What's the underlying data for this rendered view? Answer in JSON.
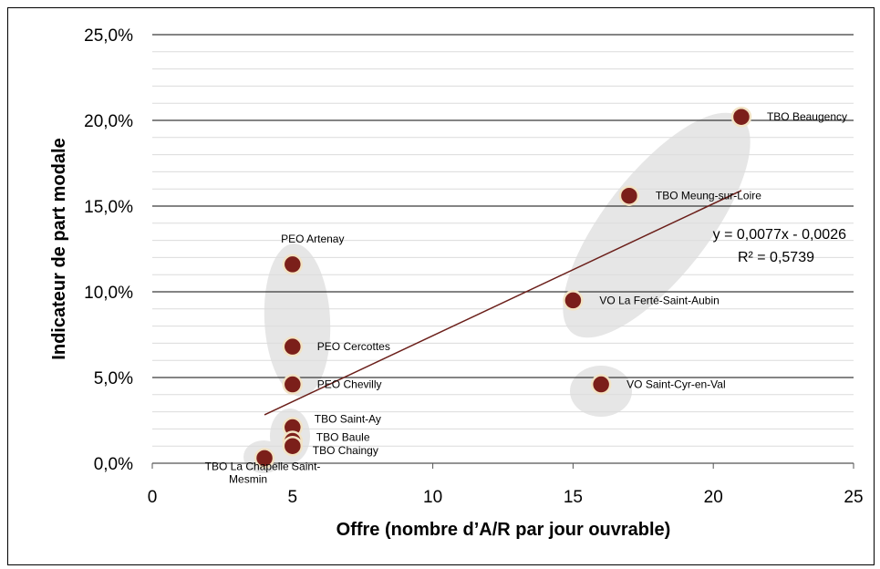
{
  "chart_data": {
    "type": "scatter",
    "xlabel": "Offre (nombre d’A/R par jour ouvrable)",
    "ylabel": "Indicateur de part modale",
    "xlim": [
      0,
      25
    ],
    "ylim": [
      0,
      0.25
    ],
    "x_ticks": [
      0,
      5,
      10,
      15,
      20,
      25
    ],
    "x_tick_labels": [
      "0",
      "5",
      "10",
      "15",
      "20",
      "25"
    ],
    "y_ticks": [
      0,
      0.05,
      0.1,
      0.15,
      0.2,
      0.25
    ],
    "y_tick_labels": [
      "0,0%",
      "5,0%",
      "10,0%",
      "15,0%",
      "20,0%",
      "25,0%"
    ],
    "grid": "horizontal",
    "point_color": "#7b1f1a",
    "point_border_color": "#f2e3c4",
    "trend_color": "#6b1f1a",
    "cluster_color": "#e6e6e6",
    "points": [
      {
        "label": "TBO Beaugency",
        "x": 21,
        "y": 0.202
      },
      {
        "label": "TBO Meung-sur-Loire",
        "x": 17,
        "y": 0.156
      },
      {
        "label": "PEO Artenay",
        "x": 5,
        "y": 0.116
      },
      {
        "label": "VO La Ferté-Saint-Aubin",
        "x": 15,
        "y": 0.095
      },
      {
        "label": "PEO Cercottes",
        "x": 5,
        "y": 0.068
      },
      {
        "label": "PEO Chevilly",
        "x": 5,
        "y": 0.046
      },
      {
        "label": "VO Saint-Cyr-en-Val",
        "x": 16,
        "y": 0.046
      },
      {
        "label": "TBO Saint-Ay",
        "x": 5,
        "y": 0.021
      },
      {
        "label": "TBO Baule",
        "x": 5,
        "y": 0.013
      },
      {
        "label": "TBO Chaingy",
        "x": 5,
        "y": 0.01
      },
      {
        "label": "TBO La Chapelle Saint-\nMesmin",
        "x": 4,
        "y": 0.003
      }
    ],
    "trendline": {
      "slope": 0.0077,
      "intercept": -0.0026,
      "x_range": [
        4,
        21
      ],
      "equation": "y = 0,0077x - 0,0026",
      "r2": "R² = 0,5739"
    }
  }
}
